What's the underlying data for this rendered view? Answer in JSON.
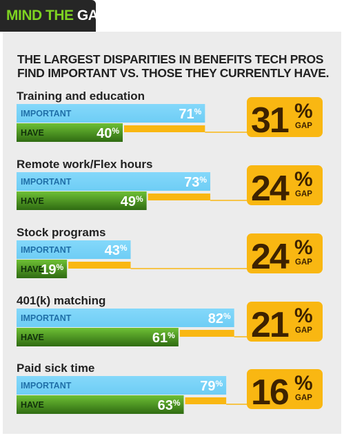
{
  "header": {
    "tab_prefix": "MIND THE ",
    "tab_emph": "GAP"
  },
  "subtitle_lines": [
    "THE LARGEST DISPARITIES IN BENEFITS TECH PROS",
    "FIND IMPORTANT VS. THOSE THEY CURRENTLY HAVE."
  ],
  "colors": {
    "important": "#6ecdf5",
    "have": "#5cab2a",
    "gap": "#f9b712",
    "gap_text": "#3d2200",
    "panel": "#ececec"
  },
  "chart_data": {
    "type": "bar",
    "categories": [
      "Training and education",
      "Remote work/Flex hours",
      "Stock programs",
      "401(k) matching",
      "Paid sick time"
    ],
    "series": [
      {
        "name": "IMPORTANT",
        "values": [
          71,
          73,
          43,
          82,
          79
        ]
      },
      {
        "name": "HAVE",
        "values": [
          40,
          49,
          19,
          61,
          63
        ]
      }
    ],
    "gap": [
      31,
      24,
      24,
      21,
      16
    ],
    "unit": "%",
    "gap_label": "GAP"
  }
}
